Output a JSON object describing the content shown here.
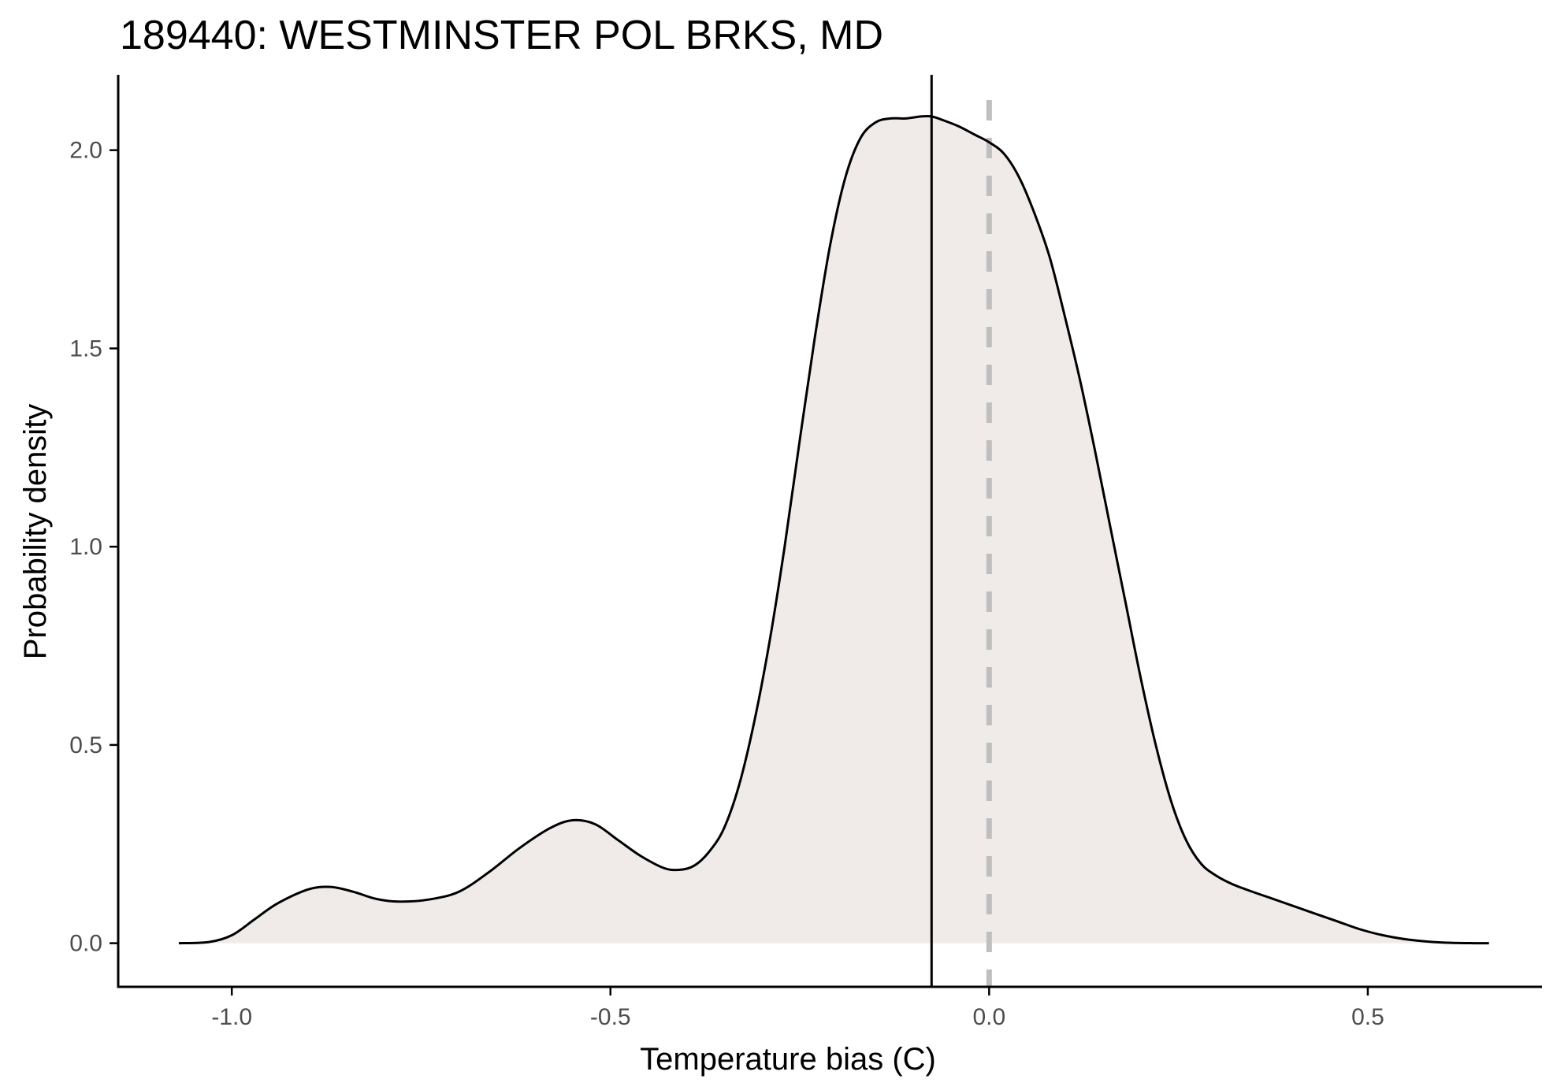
{
  "chart_data": {
    "type": "area",
    "title": "189440: WESTMINSTER POL BRKS, MD",
    "xlabel": "Temperature bias (C)",
    "ylabel": "Probability density",
    "xlim": [
      -1.15,
      0.73
    ],
    "ylim": [
      -0.11,
      2.19
    ],
    "x_ticks": [
      -1.0,
      -0.5,
      0.0,
      0.5
    ],
    "x_tick_labels": [
      "-1.0",
      "-0.5",
      "0.0",
      "0.5"
    ],
    "y_ticks": [
      0.0,
      0.5,
      1.0,
      1.5,
      2.0
    ],
    "y_tick_labels": [
      "0.0",
      "0.5",
      "1.0",
      "1.5",
      "2.0"
    ],
    "grid": false,
    "colors": {
      "fill": "#f0ebe8",
      "curve": "#000000",
      "mean_line": "#000000",
      "zero_line": "#bfbfbf",
      "axis": "#000000"
    },
    "reference_lines": [
      {
        "x": -0.076,
        "style": "solid"
      },
      {
        "x": 0.0,
        "style": "dashed"
      }
    ],
    "series": [
      {
        "x": [
          -1.07,
          -1.03,
          -1.0,
          -0.97,
          -0.94,
          -0.9,
          -0.87,
          -0.84,
          -0.81,
          -0.78,
          -0.74,
          -0.7,
          -0.66,
          -0.62,
          -0.58,
          -0.55,
          -0.52,
          -0.49,
          -0.46,
          -0.43,
          -0.41,
          -0.39,
          -0.37,
          -0.35,
          -0.33,
          -0.31,
          -0.29,
          -0.27,
          -0.25,
          -0.23,
          -0.21,
          -0.19,
          -0.17,
          -0.15,
          -0.13,
          -0.11,
          -0.09,
          -0.076,
          -0.06,
          -0.04,
          -0.02,
          0.0,
          0.02,
          0.04,
          0.06,
          0.08,
          0.1,
          0.12,
          0.14,
          0.16,
          0.18,
          0.2,
          0.22,
          0.24,
          0.26,
          0.28,
          0.3,
          0.32,
          0.34,
          0.37,
          0.4,
          0.43,
          0.46,
          0.49,
          0.52,
          0.55,
          0.58,
          0.61,
          0.64,
          0.66
        ],
        "values": [
          0.0,
          0.003,
          0.02,
          0.06,
          0.1,
          0.135,
          0.142,
          0.13,
          0.112,
          0.105,
          0.11,
          0.13,
          0.18,
          0.24,
          0.29,
          0.31,
          0.3,
          0.26,
          0.22,
          0.19,
          0.185,
          0.195,
          0.23,
          0.29,
          0.4,
          0.56,
          0.76,
          1.0,
          1.27,
          1.53,
          1.76,
          1.93,
          2.03,
          2.07,
          2.08,
          2.08,
          2.085,
          2.085,
          2.075,
          2.06,
          2.04,
          2.02,
          1.99,
          1.93,
          1.84,
          1.73,
          1.58,
          1.42,
          1.24,
          1.05,
          0.86,
          0.67,
          0.5,
          0.36,
          0.26,
          0.2,
          0.17,
          0.15,
          0.135,
          0.115,
          0.095,
          0.075,
          0.055,
          0.035,
          0.02,
          0.01,
          0.004,
          0.001,
          0.0,
          0.0
        ]
      }
    ]
  }
}
